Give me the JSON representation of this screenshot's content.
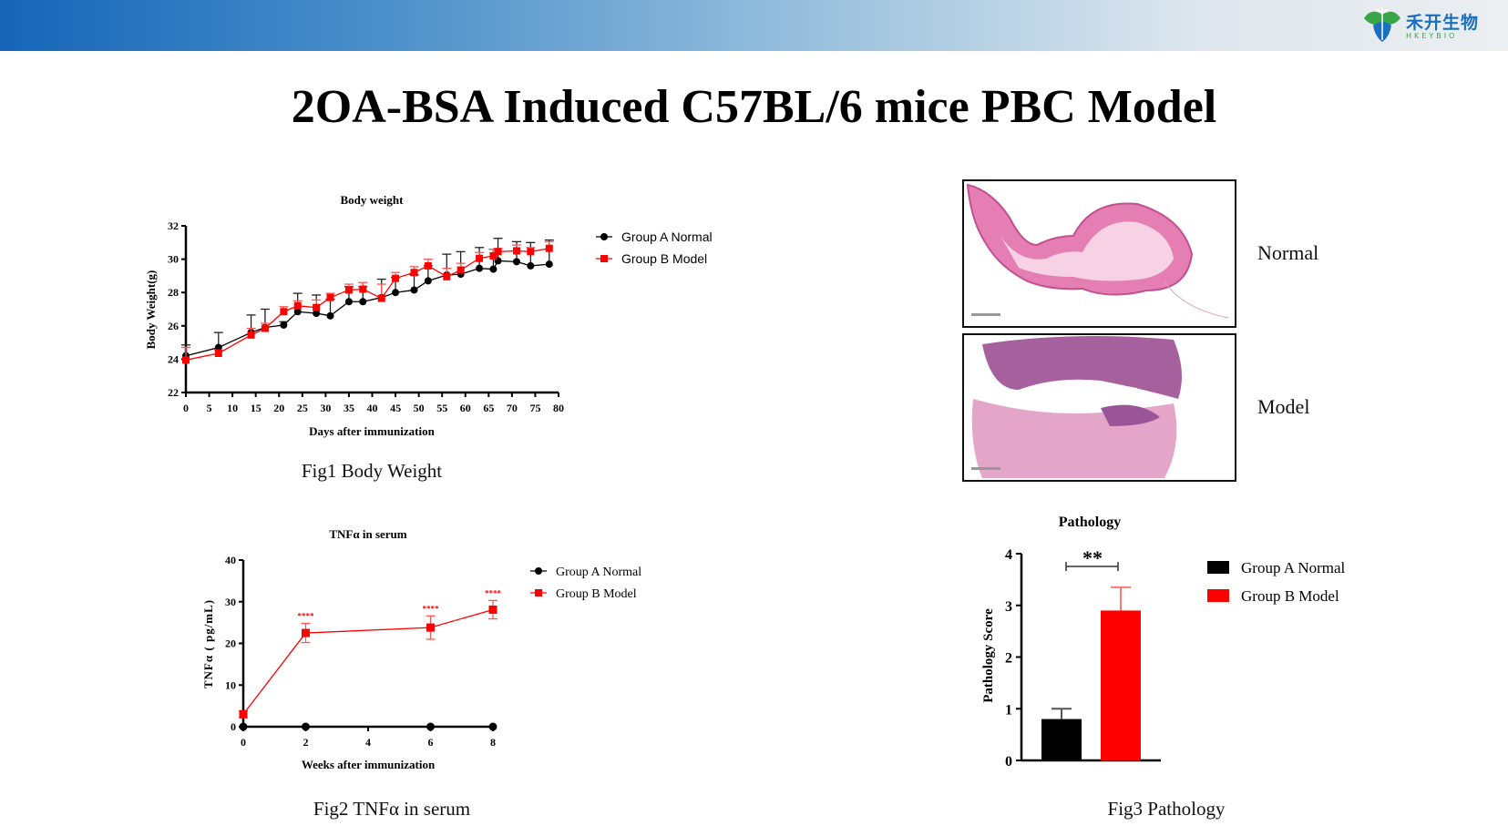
{
  "header": {
    "logo_cn": "禾开生物",
    "logo_en": "HKEYBIO",
    "brand_colors": {
      "blue": "#1a6fc0",
      "green": "#3aa64a"
    }
  },
  "title": "2OA-BSA Induced C57BL/6 mice PBC Model",
  "captions": {
    "fig1": "Fig1 Body Weight",
    "fig2": "Fig2 TNFα in serum",
    "fig3": "Fig3  Pathology"
  },
  "histology": {
    "normal_label": "Normal",
    "model_label": "Model"
  },
  "colors": {
    "normal": "#000000",
    "model": "#ff0000"
  },
  "chart_data": [
    {
      "type": "line",
      "title": "Body weight",
      "xlabel": "Days after immunization",
      "ylabel": "Body Weight(g)",
      "xlim": [
        0,
        80
      ],
      "ylim": [
        22,
        32
      ],
      "xticks": [
        "0",
        "5",
        "10",
        "15",
        "20",
        "25",
        "30",
        "35",
        "40",
        "45",
        "50",
        "55",
        "60",
        "65",
        "70",
        "75",
        "80"
      ],
      "yticks": [
        "22",
        "24",
        "26",
        "28",
        "30",
        "32"
      ],
      "legend": "right",
      "x": [
        0,
        7,
        14,
        17,
        21,
        24,
        28,
        31,
        35,
        38,
        42,
        45,
        49,
        52,
        56,
        59,
        63,
        66,
        67,
        71,
        74,
        78
      ],
      "series": [
        {
          "name": "Group A Normal",
          "marker": "circle",
          "values": [
            24.2,
            24.7,
            25.6,
            25.9,
            26.05,
            26.85,
            26.75,
            26.6,
            27.45,
            27.45,
            27.7,
            28.0,
            28.15,
            28.7,
            29.05,
            29.1,
            29.45,
            29.4,
            29.9,
            29.85,
            29.6,
            29.7
          ],
          "error": [
            0.65,
            0.9,
            1.05,
            1.1,
            0.2,
            1.1,
            1.1,
            1.0,
            0.9,
            0.9,
            1.1,
            0.9,
            0.9,
            0.9,
            1.25,
            1.35,
            1.25,
            1.2,
            1.35,
            1.2,
            1.4,
            1.45
          ]
        },
        {
          "name": "Group B Model",
          "marker": "square",
          "values": [
            23.95,
            24.35,
            25.45,
            25.85,
            26.85,
            27.2,
            27.1,
            27.7,
            28.15,
            28.2,
            27.65,
            28.85,
            29.2,
            29.6,
            28.95,
            29.35,
            30.05,
            30.2,
            30.45,
            30.5,
            30.45,
            30.65
          ],
          "error": [
            0.75,
            0.2,
            0.4,
            0.3,
            0.3,
            0.3,
            0.45,
            0.25,
            0.35,
            0.4,
            0.85,
            0.35,
            0.35,
            0.4,
            0.5,
            0.4,
            0.35,
            0.4,
            0.2,
            0.35,
            0.25,
            0.4
          ]
        }
      ]
    },
    {
      "type": "line",
      "title": "TNFα in serum",
      "xlabel": "Weeks after immunization",
      "ylabel": "TNFα ( pg/mL)",
      "xlim": [
        0,
        8
      ],
      "ylim": [
        0,
        40
      ],
      "xticks": [
        "0",
        "2",
        "4",
        "6",
        "8"
      ],
      "yticks": [
        "0",
        "10",
        "20",
        "30",
        "40"
      ],
      "legend": "right",
      "x": [
        0,
        2,
        6,
        8
      ],
      "series": [
        {
          "name": "Group A Normal",
          "marker": "circle",
          "values": [
            0,
            0,
            0,
            0
          ],
          "error": [
            0,
            0,
            0,
            0
          ]
        },
        {
          "name": "Group B Model",
          "marker": "square",
          "values": [
            3,
            22.5,
            23.8,
            28.1
          ],
          "error": [
            0.8,
            2.3,
            2.8,
            2.2
          ],
          "annotations": [
            "",
            "****",
            "****",
            "****"
          ]
        }
      ]
    },
    {
      "type": "bar",
      "title": "Pathology",
      "ylabel": "Pathology Score",
      "ylim": [
        0,
        4
      ],
      "yticks": [
        "0",
        "1",
        "2",
        "3",
        "4"
      ],
      "categories": [
        "Group A Normal",
        "Group B Model"
      ],
      "values": [
        0.8,
        2.9
      ],
      "error": [
        0.2,
        0.45
      ],
      "significance": "**",
      "legend": "right"
    }
  ]
}
